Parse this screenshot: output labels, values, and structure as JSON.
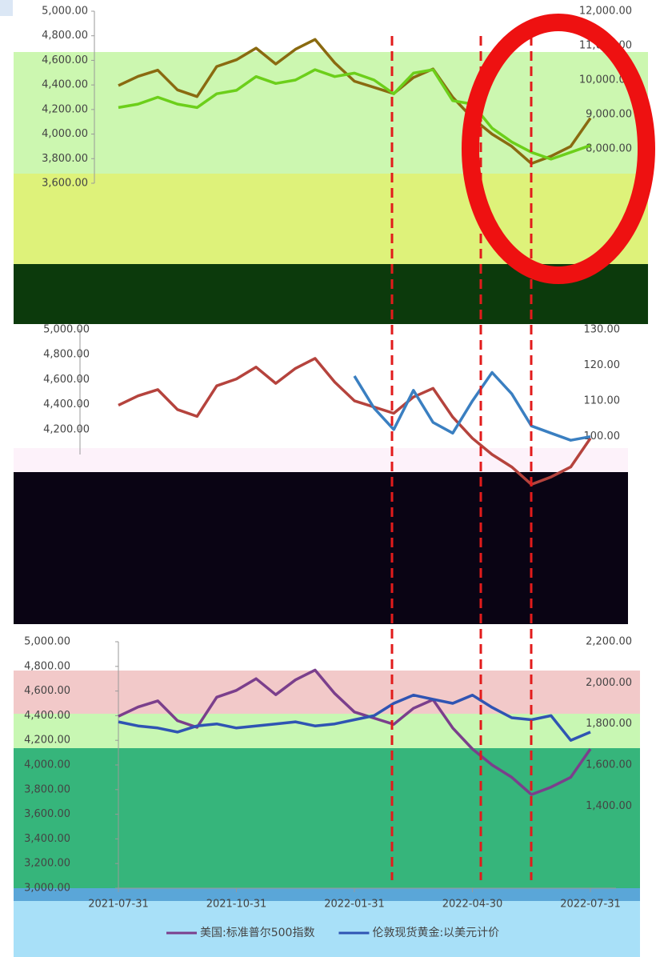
{
  "chart_data": [
    {
      "type": "line",
      "series": [
        {
          "color": "#8a6a10",
          "values": [
            4395,
            4470,
            4520,
            4360,
            4305,
            4550,
            4605,
            4700,
            4570,
            4690,
            4770,
            4580,
            4430,
            4380,
            4330,
            4460,
            4530,
            4300,
            4130,
            4000,
            3900,
            3760,
            3820,
            3900,
            4130
          ]
        },
        {
          "color": "#6ccf1a",
          "axis": "y2",
          "values": [
            9200,
            9300,
            9500,
            9300,
            9200,
            9600,
            9700,
            10100,
            9900,
            10000,
            10300,
            10100,
            10200,
            10000,
            9600,
            10200,
            10300,
            9400,
            9300,
            8600,
            8200,
            7900,
            7700,
            7900,
            8100
          ]
        }
      ],
      "ylim": [
        3600,
        5000
      ],
      "yticks": [
        {
          "value": 3600,
          "label": "3,600.00"
        },
        {
          "value": 3800,
          "label": "3,800.00"
        },
        {
          "value": 4000,
          "label": "4,000.00"
        },
        {
          "value": 4200,
          "label": "4,200.00"
        },
        {
          "value": 4400,
          "label": "4,400.00"
        },
        {
          "value": 4600,
          "label": "4,600.00"
        },
        {
          "value": 4800,
          "label": "4,800.00"
        },
        {
          "value": 5000,
          "label": "5,000.00"
        }
      ],
      "y2lim": [
        7000,
        12000
      ],
      "y2ticks": [
        {
          "value": 8000,
          "label": "8,000.00"
        },
        {
          "value": 9000,
          "label": "9,000.00"
        },
        {
          "value": 10000,
          "label": "10,000.00"
        },
        {
          "value": 11000,
          "label": "11,000.00"
        },
        {
          "value": 12000,
          "label": "12,000.00"
        }
      ]
    },
    {
      "type": "line",
      "series": [
        {
          "color": "#b5433d",
          "values": [
            4395,
            4470,
            4520,
            4360,
            4305,
            4550,
            4605,
            4700,
            4570,
            4690,
            4770,
            4580,
            4430,
            4380,
            4330,
            4460,
            4530,
            4300,
            4130,
            4000,
            3900,
            3760,
            3820,
            3900,
            4130
          ]
        },
        {
          "color": "#3a7fc1",
          "axis": "y2",
          "values": [
            null,
            null,
            null,
            null,
            null,
            null,
            null,
            null,
            null,
            null,
            null,
            null,
            117,
            108,
            102,
            113,
            104,
            101,
            110,
            118,
            112,
            103,
            101,
            99,
            100
          ]
        }
      ],
      "ylim": [
        4000,
        5000
      ],
      "yticks": [
        {
          "value": 4200,
          "label": "4,200.00"
        },
        {
          "value": 4400,
          "label": "4,400.00"
        },
        {
          "value": 4600,
          "label": "4,600.00"
        },
        {
          "value": 4800,
          "label": "4,800.00"
        },
        {
          "value": 5000,
          "label": "5,000.00"
        }
      ],
      "y2lim": [
        95,
        130
      ],
      "y2ticks": [
        {
          "value": 100,
          "label": "100.00"
        },
        {
          "value": 110,
          "label": "110.00"
        },
        {
          "value": 120,
          "label": "120.00"
        },
        {
          "value": 130,
          "label": "130.00"
        }
      ]
    },
    {
      "type": "line",
      "categories": [
        "2021-07-31",
        null,
        null,
        null,
        null,
        null,
        "2021-10-31",
        null,
        null,
        null,
        null,
        null,
        "2022-01-31",
        null,
        null,
        null,
        null,
        null,
        "2022-04-30",
        null,
        null,
        null,
        null,
        null,
        "2022-07-31"
      ],
      "series": [
        {
          "name": "美国:标准普尔500指数",
          "color": "#7b3f8c",
          "values": [
            4395,
            4470,
            4520,
            4360,
            4305,
            4550,
            4605,
            4700,
            4570,
            4690,
            4770,
            4580,
            4430,
            4380,
            4330,
            4460,
            4530,
            4300,
            4130,
            4000,
            3900,
            3760,
            3820,
            3900,
            4130
          ]
        },
        {
          "name": "伦敦现货黄金:以美元计价",
          "color": "#2f54b3",
          "axis": "y2",
          "values": [
            1810,
            1790,
            1780,
            1760,
            1790,
            1800,
            1780,
            1790,
            1800,
            1810,
            1790,
            1800,
            1820,
            1840,
            1900,
            1940,
            1920,
            1900,
            1940,
            1880,
            1830,
            1820,
            1840,
            1720,
            1760
          ]
        }
      ],
      "ylim": [
        3000,
        5000
      ],
      "yticks": [
        {
          "value": 3000,
          "label": "3,000.00"
        },
        {
          "value": 3200,
          "label": "3,200.00"
        },
        {
          "value": 3400,
          "label": "3,400.00"
        },
        {
          "value": 3600,
          "label": "3,600.00"
        },
        {
          "value": 3800,
          "label": "3,800.00"
        },
        {
          "value": 4000,
          "label": "4,000.00"
        },
        {
          "value": 4200,
          "label": "4,200.00"
        },
        {
          "value": 4400,
          "label": "4,400.00"
        },
        {
          "value": 4600,
          "label": "4,600.00"
        },
        {
          "value": 4800,
          "label": "4,800.00"
        },
        {
          "value": 5000,
          "label": "5,000.00"
        }
      ],
      "y2lim": [
        1000,
        2200
      ],
      "y2ticks": [
        {
          "value": 1400,
          "label": "1,400.00"
        },
        {
          "value": 1600,
          "label": "1,600.00"
        },
        {
          "value": 1800,
          "label": "1,800.00"
        },
        {
          "value": 2000,
          "label": "2,000.00"
        },
        {
          "value": 2200,
          "label": "2,200.00"
        }
      ]
    }
  ]
}
